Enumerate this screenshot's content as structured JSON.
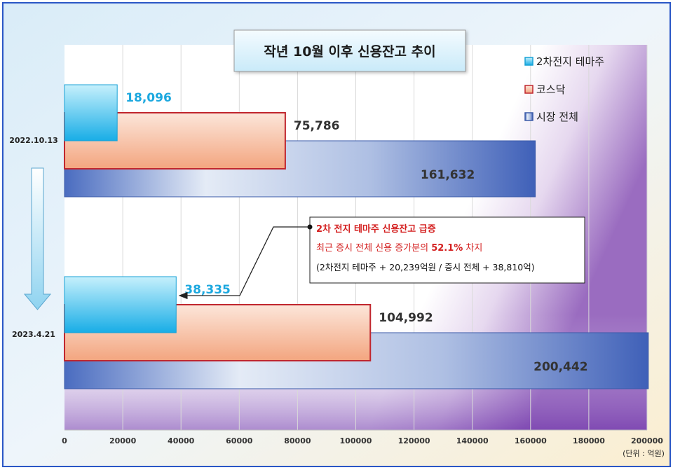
{
  "chart_data": {
    "type": "bar",
    "orientation": "horizontal",
    "title": "작년 10월 이후 신용잔고 추이",
    "categories": [
      "2022.10.13",
      "2023.4.21"
    ],
    "series": [
      {
        "name": "2차전지 테마주",
        "values": [
          18096,
          38335
        ],
        "labels": [
          "18,096",
          "38,335"
        ],
        "color": "#22b4e8"
      },
      {
        "name": "코스닥",
        "values": [
          75786,
          104992
        ],
        "labels": [
          "75,786",
          "104,992"
        ],
        "color": "#f4a07a"
      },
      {
        "name": "시장 전체",
        "values": [
          161632,
          200442
        ],
        "labels": [
          "161,632",
          "200,442"
        ],
        "color": "#4a6fc0"
      }
    ],
    "x_ticks": [
      "0",
      "20000",
      "40000",
      "60000",
      "80000",
      "100000",
      "120000",
      "140000",
      "160000",
      "180000",
      "200000"
    ],
    "xlim": [
      0,
      200000
    ],
    "unit_label": "(단위 : 억원)",
    "grid": true,
    "legend": "top-right",
    "annotation": {
      "line1": "2차 전지 테마주 신용잔고 급증",
      "line2_prefix": "최근 증시 전체 신용 증가분의 ",
      "line2_highlight": "52.1%",
      "line2_suffix": " 차지",
      "line3": "(2차전지 테마주  + 20,239억원 / 증시 전체  + 38,810억)"
    }
  }
}
